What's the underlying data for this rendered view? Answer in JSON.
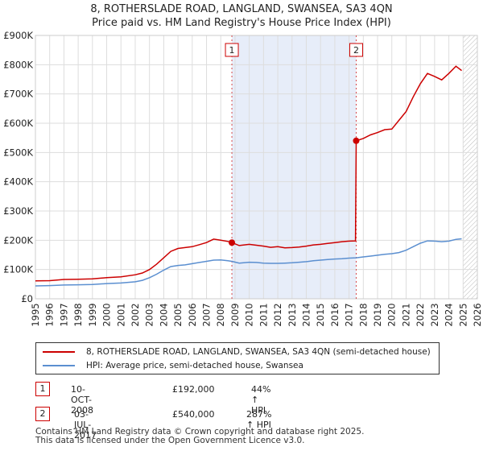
{
  "header": {
    "title": "8, ROTHERSLADE ROAD, LANGLAND, SWANSEA, SA3 4QN",
    "subtitle": "Price paid vs. HM Land Registry's House Price Index (HPI)"
  },
  "colors": {
    "property": "#cc0000",
    "hpi": "#5b8fd0",
    "shade": "#dde6f7",
    "grid": "#dddddd"
  },
  "legend": {
    "property_label": "8, ROTHERSLADE ROAD, LANGLAND, SWANSEA, SA3 4QN (semi-detached house)",
    "hpi_label": "HPI: Average price, semi-detached house, Swansea"
  },
  "sales": [
    {
      "marker": "1",
      "date": "10-OCT-2008",
      "price": "£192,000",
      "hpi_change": "44% ↑ HPI"
    },
    {
      "marker": "2",
      "date": "03-JUL-2017",
      "price": "£540,000",
      "hpi_change": "287% ↑ HPI"
    }
  ],
  "footer": {
    "line1": "Contains HM Land Registry data © Crown copyright and database right 2025.",
    "line2": "This data is licensed under the Open Government Licence v3.0."
  },
  "chart_data": {
    "type": "line",
    "title": "8, ROTHERSLADE ROAD, LANGLAND, SWANSEA, SA3 4QN",
    "subtitle": "Price paid vs. HM Land Registry's House Price Index (HPI)",
    "xlabel": "",
    "ylabel": "",
    "xlim": [
      1995,
      2026
    ],
    "ylim": [
      0,
      900000
    ],
    "x_ticks": [
      1995,
      1996,
      1997,
      1998,
      1999,
      2000,
      2001,
      2002,
      2003,
      2004,
      2005,
      2006,
      2007,
      2008,
      2009,
      2010,
      2011,
      2012,
      2013,
      2014,
      2015,
      2016,
      2017,
      2018,
      2019,
      2020,
      2021,
      2022,
      2023,
      2024,
      2025,
      2026
    ],
    "y_ticks": [
      {
        "value": 0,
        "label": "£0"
      },
      {
        "value": 100000,
        "label": "£100K"
      },
      {
        "value": 200000,
        "label": "£200K"
      },
      {
        "value": 300000,
        "label": "£300K"
      },
      {
        "value": 400000,
        "label": "£400K"
      },
      {
        "value": 500000,
        "label": "£500K"
      },
      {
        "value": 600000,
        "label": "£600K"
      },
      {
        "value": 700000,
        "label": "£700K"
      },
      {
        "value": 800000,
        "label": "£800K"
      },
      {
        "value": 900000,
        "label": "£900K"
      }
    ],
    "grid": true,
    "legend_position": "below",
    "shaded_region": [
      2008.78,
      2017.5
    ],
    "hatched_region": [
      2025.0,
      2026
    ],
    "annotations": [
      {
        "label": "1",
        "x": 2008.78,
        "y": 192000
      },
      {
        "label": "2",
        "x": 2017.5,
        "y": 540000
      }
    ],
    "series": [
      {
        "name": "8, ROTHERSLADE ROAD, LANGLAND, SWANSEA, SA3 4QN (semi-detached house)",
        "color": "#cc0000",
        "points": [
          [
            1995.0,
            61000
          ],
          [
            1996.0,
            62000
          ],
          [
            1997.0,
            66000
          ],
          [
            1998.0,
            67000
          ],
          [
            1999.0,
            68000
          ],
          [
            2000.0,
            72000
          ],
          [
            2001.0,
            75000
          ],
          [
            2002.0,
            82000
          ],
          [
            2002.5,
            88000
          ],
          [
            2003.0,
            100000
          ],
          [
            2003.5,
            118000
          ],
          [
            2004.0,
            140000
          ],
          [
            2004.5,
            162000
          ],
          [
            2005.0,
            172000
          ],
          [
            2005.5,
            175000
          ],
          [
            2006.0,
            178000
          ],
          [
            2006.5,
            185000
          ],
          [
            2007.0,
            192000
          ],
          [
            2007.5,
            204000
          ],
          [
            2008.0,
            200000
          ],
          [
            2008.5,
            196000
          ],
          [
            2008.78,
            192000
          ],
          [
            2009.3,
            182000
          ],
          [
            2010.0,
            186000
          ],
          [
            2010.5,
            183000
          ],
          [
            2011.0,
            180000
          ],
          [
            2011.5,
            176000
          ],
          [
            2012.0,
            178000
          ],
          [
            2012.5,
            174000
          ],
          [
            2013.0,
            175000
          ],
          [
            2013.5,
            177000
          ],
          [
            2014.0,
            180000
          ],
          [
            2014.5,
            184000
          ],
          [
            2015.0,
            186000
          ],
          [
            2015.5,
            189000
          ],
          [
            2016.0,
            192000
          ],
          [
            2016.5,
            195000
          ],
          [
            2017.0,
            197000
          ],
          [
            2017.45,
            198000
          ],
          [
            2017.5,
            540000
          ],
          [
            2018.0,
            548000
          ],
          [
            2018.5,
            560000
          ],
          [
            2019.0,
            568000
          ],
          [
            2019.5,
            578000
          ],
          [
            2020.0,
            580000
          ],
          [
            2020.5,
            610000
          ],
          [
            2021.0,
            640000
          ],
          [
            2021.5,
            690000
          ],
          [
            2022.0,
            735000
          ],
          [
            2022.5,
            770000
          ],
          [
            2023.0,
            760000
          ],
          [
            2023.5,
            748000
          ],
          [
            2024.0,
            770000
          ],
          [
            2024.5,
            795000
          ],
          [
            2024.9,
            780000
          ]
        ]
      },
      {
        "name": "HPI: Average price, semi-detached house, Swansea",
        "color": "#5b8fd0",
        "points": [
          [
            1995.0,
            44000
          ],
          [
            1996.0,
            45000
          ],
          [
            1997.0,
            47000
          ],
          [
            1998.0,
            48000
          ],
          [
            1999.0,
            49000
          ],
          [
            2000.0,
            52000
          ],
          [
            2001.0,
            54000
          ],
          [
            2002.0,
            58000
          ],
          [
            2002.5,
            63000
          ],
          [
            2003.0,
            72000
          ],
          [
            2003.5,
            84000
          ],
          [
            2004.0,
            98000
          ],
          [
            2004.5,
            110000
          ],
          [
            2005.0,
            114000
          ],
          [
            2005.5,
            116000
          ],
          [
            2006.0,
            120000
          ],
          [
            2006.5,
            124000
          ],
          [
            2007.0,
            128000
          ],
          [
            2007.5,
            132000
          ],
          [
            2008.0,
            133000
          ],
          [
            2008.5,
            130000
          ],
          [
            2008.78,
            128000
          ],
          [
            2009.3,
            122000
          ],
          [
            2010.0,
            125000
          ],
          [
            2010.5,
            124000
          ],
          [
            2011.0,
            122000
          ],
          [
            2011.5,
            121000
          ],
          [
            2012.0,
            121000
          ],
          [
            2012.5,
            122000
          ],
          [
            2013.0,
            123000
          ],
          [
            2013.5,
            125000
          ],
          [
            2014.0,
            127000
          ],
          [
            2014.5,
            130000
          ],
          [
            2015.0,
            132000
          ],
          [
            2015.5,
            134000
          ],
          [
            2016.0,
            136000
          ],
          [
            2016.5,
            137000
          ],
          [
            2017.0,
            139000
          ],
          [
            2017.5,
            140000
          ],
          [
            2018.0,
            143000
          ],
          [
            2018.5,
            146000
          ],
          [
            2019.0,
            149000
          ],
          [
            2019.5,
            152000
          ],
          [
            2020.0,
            154000
          ],
          [
            2020.5,
            158000
          ],
          [
            2021.0,
            166000
          ],
          [
            2021.5,
            178000
          ],
          [
            2022.0,
            190000
          ],
          [
            2022.5,
            198000
          ],
          [
            2023.0,
            197000
          ],
          [
            2023.5,
            195000
          ],
          [
            2024.0,
            197000
          ],
          [
            2024.5,
            203000
          ],
          [
            2024.9,
            205000
          ]
        ]
      }
    ]
  }
}
